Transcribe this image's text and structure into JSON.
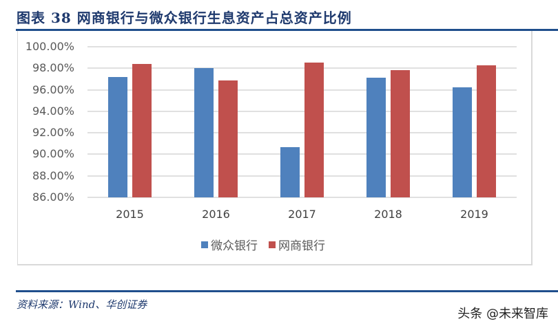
{
  "title": "图表 38  网商银行与微众银行生息资产占总资产比例",
  "source": "资料来源：Wind、华创证券",
  "watermark": "头条 @未来智库",
  "colors": {
    "series1": "#4F81BD",
    "series2": "#C0504D",
    "rule": "#1F4E8C"
  },
  "legend": [
    "微众银行",
    "网商银行"
  ],
  "chart_data": {
    "type": "bar",
    "title": "网商银行与微众银行生息资产占总资产比例",
    "categories": [
      "2015",
      "2016",
      "2017",
      "2018",
      "2019"
    ],
    "series": [
      {
        "name": "微众银行",
        "color": "#4F81BD",
        "values": [
          97.17,
          98.03,
          90.64,
          97.1,
          96.2
        ]
      },
      {
        "name": "网商银行",
        "color": "#C0504D",
        "values": [
          98.38,
          96.85,
          98.5,
          97.8,
          98.25
        ]
      }
    ],
    "xlabel": "",
    "ylabel": "",
    "ylim": [
      86,
      100
    ],
    "yticks": [
      "100.00%",
      "98.00%",
      "96.00%",
      "94.00%",
      "92.00%",
      "90.00%",
      "88.00%",
      "86.00%"
    ],
    "grid": true,
    "legend_position": "bottom"
  }
}
